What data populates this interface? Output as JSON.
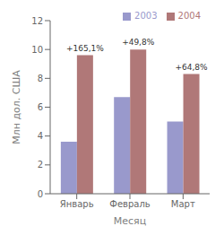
{
  "chart_data": {
    "type": "bar",
    "categories": [
      "Январь",
      "Февраль",
      "Март"
    ],
    "series": [
      {
        "name": "2003",
        "color": "#9999cc",
        "values": [
          3.6,
          6.7,
          5.0
        ]
      },
      {
        "name": "2004",
        "color": "#b07878",
        "values": [
          9.6,
          10.0,
          8.3
        ],
        "annotations": [
          "+165,1%",
          "+49,8%",
          "+64,8%"
        ]
      }
    ],
    "xlabel": "Месяц",
    "ylabel": "Млн  дол. США",
    "ylim": [
      0,
      12
    ],
    "yticks": [
      0,
      2,
      4,
      6,
      8,
      10,
      12
    ],
    "grid": false,
    "legend": "upper right"
  }
}
